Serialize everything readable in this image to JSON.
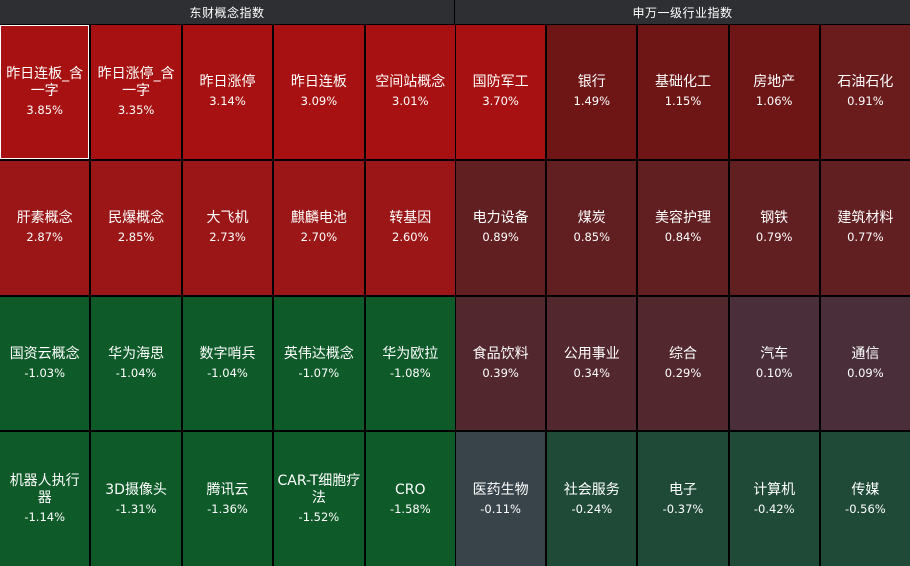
{
  "left_panel": {
    "title": "东财概念指数",
    "tiles": [
      {
        "name": "昨日连板_含一字",
        "value": "3.85%",
        "color": "#a81111"
      },
      {
        "name": "昨日涨停_含一字",
        "value": "3.35%",
        "color": "#a81111"
      },
      {
        "name": "昨日涨停",
        "value": "3.14%",
        "color": "#a81111"
      },
      {
        "name": "昨日连板",
        "value": "3.09%",
        "color": "#a81111"
      },
      {
        "name": "空间站概念",
        "value": "3.01%",
        "color": "#a81111"
      },
      {
        "name": "肝素概念",
        "value": "2.87%",
        "color": "#9b1616"
      },
      {
        "name": "民爆概念",
        "value": "2.85%",
        "color": "#9b1616"
      },
      {
        "name": "大飞机",
        "value": "2.73%",
        "color": "#9b1616"
      },
      {
        "name": "麒麟电池",
        "value": "2.70%",
        "color": "#9b1616"
      },
      {
        "name": "转基因",
        "value": "2.60%",
        "color": "#9b1616"
      },
      {
        "name": "国资云概念",
        "value": "-1.03%",
        "color": "#0e5a28"
      },
      {
        "name": "华为海思",
        "value": "-1.04%",
        "color": "#0e5a28"
      },
      {
        "name": "数字哨兵",
        "value": "-1.04%",
        "color": "#0e5a28"
      },
      {
        "name": "英伟达概念",
        "value": "-1.07%",
        "color": "#0e5a28"
      },
      {
        "name": "华为欧拉",
        "value": "-1.08%",
        "color": "#0e5a28"
      },
      {
        "name": "机器人执行器",
        "value": "-1.14%",
        "color": "#0e5a28"
      },
      {
        "name": "3D摄像头",
        "value": "-1.31%",
        "color": "#0e5a28"
      },
      {
        "name": "腾讯云",
        "value": "-1.36%",
        "color": "#0e5a28"
      },
      {
        "name": "CAR-T细胞疗法",
        "value": "-1.52%",
        "color": "#0e5a28"
      },
      {
        "name": "CRO",
        "value": "-1.58%",
        "color": "#0e5a28"
      }
    ]
  },
  "right_panel": {
    "title": "申万一级行业指数",
    "tiles": [
      {
        "name": "国防军工",
        "value": "3.70%",
        "color": "#a81111"
      },
      {
        "name": "银行",
        "value": "1.49%",
        "color": "#6e1616"
      },
      {
        "name": "基础化工",
        "value": "1.15%",
        "color": "#6e1616"
      },
      {
        "name": "房地产",
        "value": "1.06%",
        "color": "#6e1616"
      },
      {
        "name": "石油石化",
        "value": "0.91%",
        "color": "#6a1c1c"
      },
      {
        "name": "电力设备",
        "value": "0.89%",
        "color": "#621f22"
      },
      {
        "name": "煤炭",
        "value": "0.85%",
        "color": "#621f22"
      },
      {
        "name": "美容护理",
        "value": "0.84%",
        "color": "#621f22"
      },
      {
        "name": "钢铁",
        "value": "0.79%",
        "color": "#621f22"
      },
      {
        "name": "建筑材料",
        "value": "0.77%",
        "color": "#621f22"
      },
      {
        "name": "食品饮料",
        "value": "0.39%",
        "color": "#52272e"
      },
      {
        "name": "公用事业",
        "value": "0.34%",
        "color": "#52272e"
      },
      {
        "name": "综合",
        "value": "0.29%",
        "color": "#52272e"
      },
      {
        "name": "汽车",
        "value": "0.10%",
        "color": "#4a2f3a"
      },
      {
        "name": "通信",
        "value": "0.09%",
        "color": "#4a2f3a"
      },
      {
        "name": "医药生物",
        "value": "-0.11%",
        "color": "#38434a"
      },
      {
        "name": "社会服务",
        "value": "-0.24%",
        "color": "#1f4a38"
      },
      {
        "name": "电子",
        "value": "-0.37%",
        "color": "#1f4a38"
      },
      {
        "name": "计算机",
        "value": "-0.42%",
        "color": "#1f4a38"
      },
      {
        "name": "传媒",
        "value": "-0.56%",
        "color": "#1f4a38"
      }
    ]
  },
  "selected_tile": "left_panel.tiles.0"
}
